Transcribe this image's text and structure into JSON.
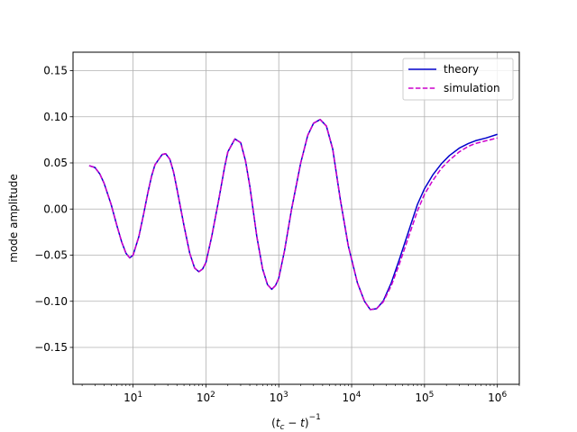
{
  "chart_data": {
    "type": "line",
    "xlabel": "(t_c − t)⁻¹",
    "ylabel": "mode amplitude",
    "xscale": "log",
    "xlim": [
      1.5,
      2000000
    ],
    "ylim": [
      -0.19,
      0.17
    ],
    "grid": true,
    "legend_position": "top-right",
    "x_ticks": [
      {
        "value": 10,
        "base": "10",
        "exp": "1"
      },
      {
        "value": 100,
        "base": "10",
        "exp": "2"
      },
      {
        "value": 1000,
        "base": "10",
        "exp": "3"
      },
      {
        "value": 10000,
        "base": "10",
        "exp": "4"
      },
      {
        "value": 100000,
        "base": "10",
        "exp": "5"
      },
      {
        "value": 1000000,
        "base": "10",
        "exp": "6"
      }
    ],
    "y_ticks": [
      {
        "value": 0.15,
        "label": "0.15"
      },
      {
        "value": 0.1,
        "label": "0.10"
      },
      {
        "value": 0.05,
        "label": "0.05"
      },
      {
        "value": 0.0,
        "label": "0.00"
      },
      {
        "value": -0.05,
        "label": "−0.05"
      },
      {
        "value": -0.1,
        "label": "−0.10"
      },
      {
        "value": -0.15,
        "label": "−0.15"
      }
    ],
    "series": [
      {
        "name": "theory",
        "color": "#0000cc",
        "style": "solid",
        "x": [
          2.5,
          3,
          3.5,
          4,
          5,
          6,
          7,
          8,
          9,
          10,
          12,
          14,
          16,
          18,
          20,
          25,
          28,
          32,
          36,
          40,
          50,
          60,
          70,
          80,
          90,
          100,
          120,
          150,
          180,
          200,
          250,
          300,
          350,
          400,
          500,
          600,
          700,
          800,
          900,
          1000,
          1200,
          1500,
          2000,
          2500,
          3000,
          3700,
          4500,
          5500,
          7000,
          9000,
          12000,
          15000,
          18000,
          22000,
          27000,
          35000,
          45000,
          60000,
          80000,
          100000,
          130000,
          170000,
          220000,
          300000,
          400000,
          500000,
          700000,
          1000000
        ],
        "y": [
          0.047,
          0.045,
          0.038,
          0.028,
          0.005,
          -0.018,
          -0.036,
          -0.048,
          -0.053,
          -0.05,
          -0.03,
          -0.005,
          0.018,
          0.036,
          0.048,
          0.059,
          0.06,
          0.054,
          0.04,
          0.022,
          -0.018,
          -0.048,
          -0.064,
          -0.068,
          -0.065,
          -0.058,
          -0.03,
          0.01,
          0.045,
          0.062,
          0.076,
          0.072,
          0.052,
          0.025,
          -0.03,
          -0.065,
          -0.082,
          -0.087,
          -0.083,
          -0.075,
          -0.045,
          0.0,
          0.05,
          0.08,
          0.093,
          0.097,
          0.09,
          0.065,
          0.01,
          -0.04,
          -0.08,
          -0.1,
          -0.109,
          -0.108,
          -0.1,
          -0.08,
          -0.055,
          -0.025,
          0.005,
          0.022,
          0.037,
          0.049,
          0.058,
          0.066,
          0.071,
          0.074,
          0.077,
          0.081
        ]
      },
      {
        "name": "simulation",
        "color": "#cc00cc",
        "style": "dashed",
        "x": [
          2.5,
          3,
          3.5,
          4,
          5,
          6,
          7,
          8,
          9,
          10,
          12,
          14,
          16,
          18,
          20,
          25,
          28,
          32,
          36,
          40,
          50,
          60,
          70,
          80,
          90,
          100,
          120,
          150,
          180,
          200,
          250,
          300,
          350,
          400,
          500,
          600,
          700,
          800,
          900,
          1000,
          1200,
          1500,
          2000,
          2500,
          3000,
          3700,
          4500,
          5500,
          7000,
          9000,
          12000,
          15000,
          18000,
          22000,
          27000,
          35000,
          45000,
          60000,
          80000,
          100000,
          130000,
          170000,
          220000,
          300000,
          400000,
          500000,
          700000,
          1000000
        ],
        "y": [
          0.047,
          0.045,
          0.038,
          0.028,
          0.005,
          -0.018,
          -0.036,
          -0.048,
          -0.053,
          -0.05,
          -0.03,
          -0.005,
          0.018,
          0.036,
          0.048,
          0.059,
          0.06,
          0.054,
          0.04,
          0.022,
          -0.018,
          -0.048,
          -0.064,
          -0.068,
          -0.065,
          -0.058,
          -0.03,
          0.01,
          0.045,
          0.062,
          0.076,
          0.072,
          0.052,
          0.025,
          -0.03,
          -0.065,
          -0.082,
          -0.087,
          -0.083,
          -0.075,
          -0.045,
          0.0,
          0.05,
          0.08,
          0.093,
          0.097,
          0.09,
          0.065,
          0.01,
          -0.04,
          -0.08,
          -0.1,
          -0.109,
          -0.108,
          -0.101,
          -0.083,
          -0.06,
          -0.031,
          -0.002,
          0.016,
          0.031,
          0.044,
          0.053,
          0.062,
          0.068,
          0.071,
          0.074,
          0.077
        ]
      }
    ]
  }
}
